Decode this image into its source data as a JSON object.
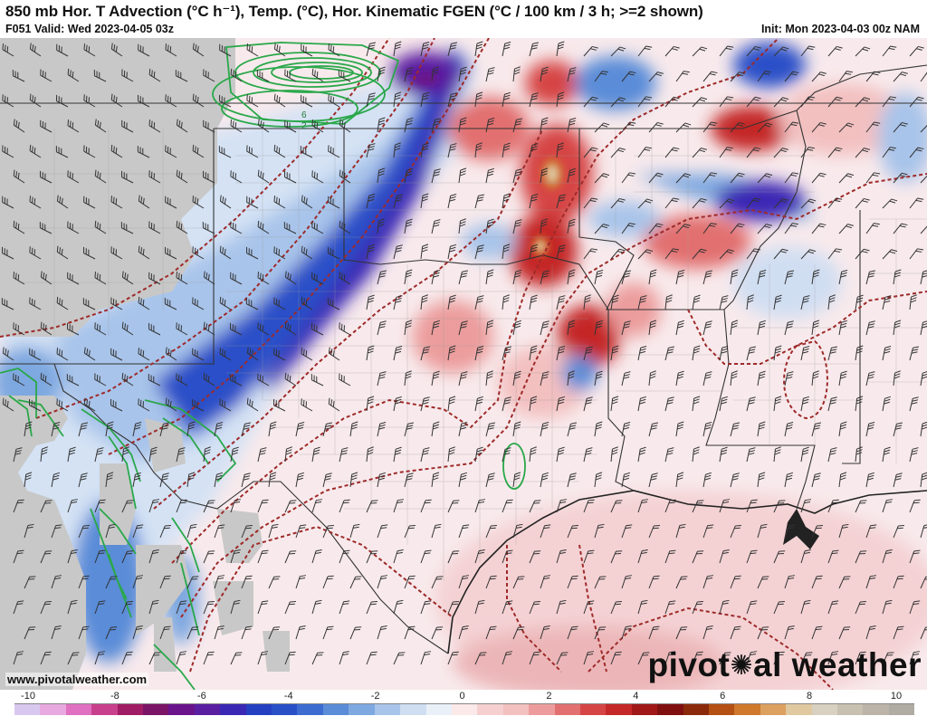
{
  "header": {
    "title": "850 mb Hor. T Advection (°C h⁻¹), Temp. (°C), Hor. Kinematic FGEN (°C / 100 km / 3 h; >=2 shown)",
    "valid": "F051 Valid: Wed 2023-04-05 03z",
    "init": "Init: Mon 2023-04-03 00z NAM"
  },
  "footer": {
    "credit": "www.pivotalweather.com",
    "logo_left": "pivot",
    "logo_right": "al weather"
  },
  "map": {
    "fgen_labels": [
      "6",
      "2"
    ],
    "colors": {
      "strong_cold": "#5a1fa0",
      "cold": "#2a50c8",
      "mild_cold": "#a8c4ea",
      "mild_warm": "#f3c0c0",
      "warm": "#d64545",
      "strong_warm": "#a01818",
      "no_data": "#c8c8c8",
      "isotherm": "#9e2a2a",
      "fgen_contour": "#2aa84a",
      "border": "#222222"
    }
  },
  "colorbar": {
    "ticks": [
      "-10",
      "-8",
      "-6",
      "-4",
      "-2",
      "0",
      "2",
      "4",
      "6",
      "8",
      "10"
    ],
    "colors": [
      "#d8c8f0",
      "#e8a8e0",
      "#e070c0",
      "#c8408c",
      "#a01c64",
      "#7a1466",
      "#6a148c",
      "#5a1fa0",
      "#3a28b4",
      "#2440c0",
      "#2a50c8",
      "#3c6cd0",
      "#5a8cd8",
      "#7ea8e0",
      "#a8c4ea",
      "#d0def2",
      "#eaf0f8",
      "#fbe8e8",
      "#f6d0d0",
      "#f3c0c0",
      "#ec9c9c",
      "#e27070",
      "#d64545",
      "#c42828",
      "#a01818",
      "#801010",
      "#8a2a0a",
      "#b45014",
      "#d0782c",
      "#dca060",
      "#e0c8a0",
      "#d8d0c0",
      "#c8c0b0",
      "#bcb4a8",
      "#b0aca4"
    ]
  }
}
